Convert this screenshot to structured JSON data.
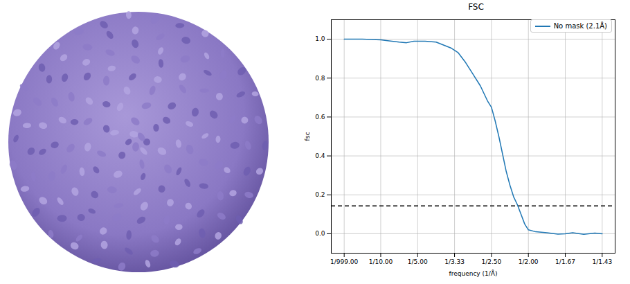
{
  "chart_data": {
    "type": "line",
    "title": "FSC",
    "x_label": "frequency (1/Å)",
    "y_label": "fsc",
    "x": [
      0.001,
      0.05,
      0.1,
      0.13,
      0.15,
      0.17,
      0.19,
      0.22,
      0.25,
      0.27,
      0.29,
      0.31,
      0.33,
      0.35,
      0.37,
      0.38,
      0.39,
      0.4,
      0.41,
      0.42,
      0.43,
      0.44,
      0.45,
      0.46,
      0.47,
      0.48,
      0.49,
      0.5,
      0.52,
      0.55,
      0.58,
      0.6,
      0.62,
      0.65,
      0.68,
      0.7
    ],
    "series": [
      {
        "name": "No mask (2.1Å)",
        "color": "#1f77b4",
        "values": [
          1.0,
          1.0,
          0.997,
          0.99,
          0.985,
          0.982,
          0.99,
          0.99,
          0.985,
          0.97,
          0.955,
          0.93,
          0.88,
          0.82,
          0.76,
          0.72,
          0.68,
          0.65,
          0.58,
          0.5,
          0.41,
          0.32,
          0.25,
          0.19,
          0.15,
          0.1,
          0.05,
          0.02,
          0.01,
          0.005,
          -0.002,
          0.0,
          0.005,
          -0.003,
          0.003,
          0.0
        ]
      }
    ],
    "xlim": [
      -0.034,
      0.735
    ],
    "xticks": [
      {
        "value": 0.001,
        "label": "1/999.00"
      },
      {
        "value": 0.1,
        "label": "1/10.00"
      },
      {
        "value": 0.2,
        "label": "1/5.00"
      },
      {
        "value": 0.3,
        "label": "1/3.33"
      },
      {
        "value": 0.4,
        "label": "1/2.50"
      },
      {
        "value": 0.5,
        "label": "1/2.00"
      },
      {
        "value": 0.6,
        "label": "1/1.67"
      },
      {
        "value": 0.7,
        "label": "1/1.43"
      }
    ],
    "ylim": [
      -0.1,
      1.1
    ],
    "yticks": [
      {
        "value": 0,
        "label": "0.0"
      },
      {
        "value": 0.2,
        "label": "0.2"
      },
      {
        "value": 0.4,
        "label": "0.4"
      },
      {
        "value": 0.6,
        "label": "0.6"
      },
      {
        "value": 0.8,
        "label": "0.8"
      },
      {
        "value": 1.0,
        "label": "1.0"
      }
    ],
    "threshold": 0.143,
    "grid": true,
    "legend": "upper right"
  }
}
